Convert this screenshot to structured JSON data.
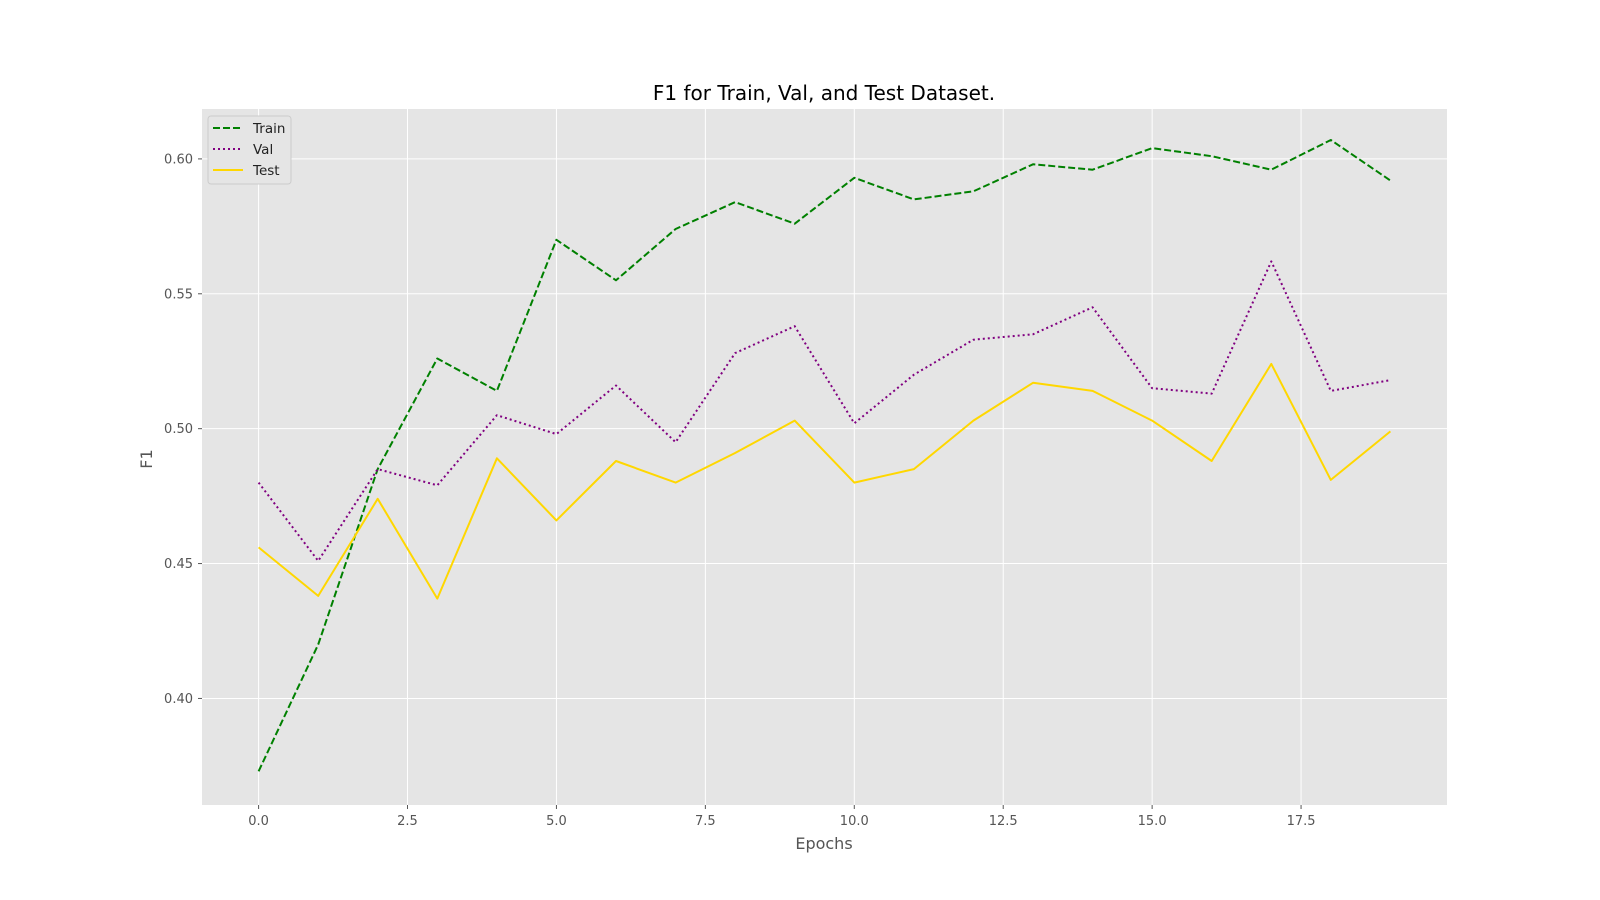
{
  "chart_data": {
    "type": "line",
    "title": "F1 for Train, Val, and Test Dataset.",
    "xlabel": "Epochs",
    "ylabel": "F1",
    "x": [
      0,
      1,
      2,
      3,
      4,
      5,
      6,
      7,
      8,
      9,
      10,
      11,
      12,
      13,
      14,
      15,
      16,
      17,
      18,
      19
    ],
    "xlim": [
      -0.95,
      19.95
    ],
    "ylim": [
      0.3605,
      0.6185
    ],
    "xticks": [
      0.0,
      2.5,
      5.0,
      7.5,
      10.0,
      12.5,
      15.0,
      17.5
    ],
    "xtick_labels": [
      "0.0",
      "2.5",
      "5.0",
      "7.5",
      "10.0",
      "12.5",
      "15.0",
      "17.5"
    ],
    "yticks": [
      0.4,
      0.45,
      0.5,
      0.55,
      0.6
    ],
    "ytick_labels": [
      "0.40",
      "0.45",
      "0.50",
      "0.55",
      "0.60"
    ],
    "grid": true,
    "legend_position": "top-left",
    "series": [
      {
        "name": "Train",
        "color": "#008000",
        "style": "dashed",
        "values": [
          0.373,
          0.42,
          0.485,
          0.526,
          0.514,
          0.57,
          0.555,
          0.574,
          0.584,
          0.576,
          0.593,
          0.585,
          0.588,
          0.598,
          0.596,
          0.604,
          0.601,
          0.596,
          0.607,
          0.592
        ]
      },
      {
        "name": "Val",
        "color": "#800080",
        "style": "dotted",
        "values": [
          0.48,
          0.451,
          0.485,
          0.479,
          0.505,
          0.498,
          0.516,
          0.495,
          0.528,
          0.538,
          0.502,
          0.52,
          0.533,
          0.535,
          0.545,
          0.515,
          0.513,
          0.562,
          0.514,
          0.518
        ]
      },
      {
        "name": "Test",
        "color": "#FFD700",
        "style": "solid",
        "values": [
          0.456,
          0.438,
          0.474,
          0.437,
          0.489,
          0.466,
          0.488,
          0.48,
          0.491,
          0.503,
          0.48,
          0.485,
          0.503,
          0.517,
          0.514,
          0.503,
          0.488,
          0.524,
          0.481,
          0.499
        ]
      }
    ]
  }
}
